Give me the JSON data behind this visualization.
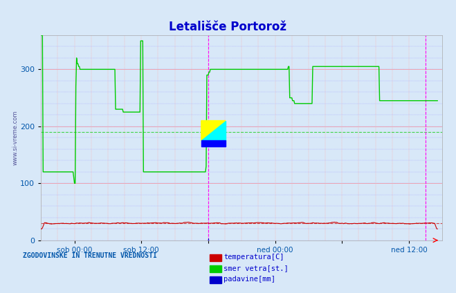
{
  "title": "Letališče Portorož",
  "title_color": "#0000cc",
  "bg_color": "#d8e8f8",
  "plot_bg_color": "#d8e8f8",
  "grid_color_major": "#ff9999",
  "grid_color_minor": "#ddddff",
  "xlabel_color": "#0055aa",
  "ylabel_left_label": "www.si-vreme.com",
  "footer_text": "ZGODOVINSKE IN TRENUTNE VREDNOSTI",
  "footer_color": "#0055aa",
  "xlim": [
    0,
    576
  ],
  "ylim": [
    0,
    360
  ],
  "yticks": [
    0,
    100,
    200,
    300
  ],
  "xtick_positions": [
    48,
    144,
    240,
    336,
    432,
    528
  ],
  "xtick_labels": [
    "sob 00:00",
    "sob 12:00",
    "",
    "ned 00:00",
    "",
    "ned 12:00"
  ],
  "temp_color": "#cc0000",
  "wind_dir_color": "#00cc00",
  "precip_color": "#0000cc",
  "temp_hline": 30,
  "wind_avg_hline": 190,
  "vline1_x": 240,
  "vline2_x": 552,
  "vline_color": "#ff00ff",
  "legend_items": [
    {
      "label": "temperatura[C]",
      "color": "#cc0000"
    },
    {
      "label": "smer vetra[st.]",
      "color": "#00cc00"
    },
    {
      "label": "padavine[mm]",
      "color": "#0000cc"
    }
  ],
  "wind_dir_data": [
    370,
    370,
    370,
    120,
    120,
    120,
    120,
    120,
    120,
    120,
    120,
    120,
    120,
    120,
    120,
    120,
    120,
    120,
    120,
    120,
    120,
    120,
    120,
    120,
    120,
    120,
    120,
    120,
    120,
    120,
    120,
    120,
    120,
    120,
    120,
    120,
    120,
    120,
    120,
    120,
    120,
    120,
    120,
    120,
    120,
    120,
    120,
    110,
    100,
    100,
    270,
    320,
    310,
    310,
    305,
    305,
    300,
    300,
    300,
    300,
    300,
    300,
    300,
    300,
    300,
    300,
    300,
    300,
    300,
    300,
    300,
    300,
    300,
    300,
    300,
    300,
    300,
    300,
    300,
    300,
    300,
    300,
    300,
    300,
    300,
    300,
    300,
    300,
    300,
    300,
    300,
    300,
    300,
    300,
    300,
    300,
    300,
    300,
    300,
    300,
    300,
    300,
    300,
    300,
    300,
    300,
    300,
    230,
    230,
    230,
    230,
    230,
    230,
    230,
    230,
    230,
    230,
    230,
    225,
    225,
    225,
    225,
    225,
    225,
    225,
    225,
    225,
    225,
    225,
    225,
    225,
    225,
    225,
    225,
    225,
    225,
    225,
    225,
    225,
    225,
    225,
    225,
    225,
    350,
    350,
    350,
    350,
    120,
    120,
    120,
    120,
    120,
    120,
    120,
    120,
    120,
    120,
    120,
    120,
    120,
    120,
    120,
    120,
    120,
    120,
    120,
    120,
    120,
    120,
    120,
    120,
    120,
    120,
    120,
    120,
    120,
    120,
    120,
    120,
    120,
    120,
    120,
    120,
    120,
    120,
    120,
    120,
    120,
    120,
    120,
    120,
    120,
    120,
    120,
    120,
    120,
    120,
    120,
    120,
    120,
    120,
    120,
    120,
    120,
    120,
    120,
    120,
    120,
    120,
    120,
    120,
    120,
    120,
    120,
    120,
    120,
    120,
    120,
    120,
    120,
    120,
    120,
    120,
    120,
    120,
    120,
    120,
    120,
    120,
    120,
    120,
    120,
    120,
    120,
    120,
    120,
    120,
    130,
    290,
    290,
    290,
    295,
    295,
    300,
    300,
    300,
    300,
    300,
    300,
    300,
    300,
    300,
    300,
    300,
    300,
    300,
    300,
    300,
    300,
    300,
    300,
    300,
    300,
    300,
    300,
    300,
    300,
    300,
    300,
    300,
    300,
    300,
    300,
    300,
    300,
    300,
    300,
    300,
    300,
    300,
    300,
    300,
    300,
    300,
    300,
    300,
    300,
    300,
    300,
    300,
    300,
    300,
    300,
    300,
    300,
    300,
    300,
    300,
    300,
    300,
    300,
    300,
    300,
    300,
    300,
    300,
    300,
    300,
    300,
    300,
    300,
    300,
    300,
    300,
    300,
    300,
    300,
    300,
    300,
    300,
    300,
    300,
    300,
    300,
    300,
    300,
    300,
    300,
    300,
    300,
    300,
    300,
    300,
    300,
    300,
    300,
    300,
    300,
    300,
    300,
    300,
    300,
    300,
    300,
    300,
    300,
    300,
    300,
    300,
    300,
    300,
    300,
    300,
    300,
    300,
    305,
    305,
    250,
    250,
    250,
    250,
    245,
    245,
    245,
    240,
    240,
    240,
    240,
    240,
    240,
    240,
    240,
    240,
    240,
    240,
    240,
    240,
    240,
    240,
    240,
    240,
    240,
    240,
    240,
    240,
    240,
    240,
    240,
    240,
    240,
    305,
    305,
    305,
    305,
    305,
    305,
    305,
    305,
    305,
    305,
    305,
    305,
    305,
    305,
    305,
    305,
    305,
    305,
    305,
    305,
    305,
    305,
    305,
    305,
    305,
    305,
    305,
    305,
    305,
    305,
    305,
    305,
    305,
    305,
    305,
    305,
    305,
    305,
    305,
    305,
    305,
    305,
    305,
    305,
    305,
    305,
    305,
    305,
    305,
    305,
    305,
    305,
    305,
    305,
    305,
    305,
    305,
    305,
    305,
    305,
    305,
    305,
    305,
    305,
    305,
    305,
    305,
    305,
    305,
    305,
    305,
    305,
    305,
    305,
    305,
    305,
    305,
    305,
    305,
    305,
    305,
    305,
    305,
    305,
    305,
    305,
    305,
    305,
    305,
    305,
    305,
    305,
    305,
    305,
    305,
    305,
    245,
    245,
    245,
    245,
    245,
    245,
    245,
    245,
    245,
    245,
    245,
    245,
    245,
    245,
    245,
    245,
    245,
    245,
    245,
    245,
    245,
    245,
    245,
    245,
    245,
    245,
    245,
    245,
    245,
    245,
    245,
    245,
    245,
    245,
    245,
    245,
    245,
    245,
    245,
    245,
    245,
    245,
    245,
    245,
    245,
    245,
    245,
    245,
    245,
    245,
    245,
    245,
    245,
    245,
    245,
    245,
    245,
    245,
    245,
    245,
    245,
    245,
    245,
    245,
    245,
    245,
    245,
    245,
    245,
    245,
    245,
    245,
    245,
    245,
    245,
    245,
    245,
    245,
    245,
    245,
    245,
    245,
    245,
    245
  ],
  "temp_data_approx": 30,
  "precip_spike_x": 240,
  "precip_spike_y": 5
}
